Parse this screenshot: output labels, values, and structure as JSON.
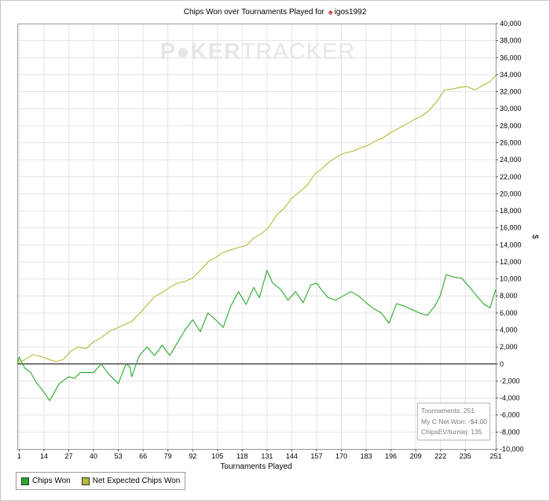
{
  "title": {
    "prefix": "Chips Won over Tournaments Played for",
    "player": "igos1992"
  },
  "watermark": {
    "part1": "P",
    "part2": "KER",
    "part3": "TRACKER"
  },
  "colors": {
    "chips_won": "#2aa82a",
    "net_expected": "#b8b83a",
    "zero_line": "#000000",
    "grid": "#e4e4e4",
    "watermark": "#e6e6e6"
  },
  "chart_data": {
    "type": "line",
    "xlabel": "Tournaments Played",
    "ylabel": "$",
    "xlim": [
      0,
      251
    ],
    "ylim": [
      -10000,
      40000
    ],
    "grid": true,
    "legend_position": "bottom-left",
    "x_ticks": [
      1,
      14,
      27,
      40,
      53,
      66,
      79,
      92,
      105,
      118,
      131,
      144,
      157,
      170,
      183,
      196,
      209,
      222,
      235,
      251
    ],
    "y_ticks": [
      -10000,
      -8000,
      -6000,
      -4000,
      -2000,
      0,
      2000,
      4000,
      6000,
      8000,
      10000,
      12000,
      14000,
      16000,
      18000,
      20000,
      22000,
      24000,
      26000,
      28000,
      30000,
      32000,
      34000,
      36000,
      38000,
      40000
    ],
    "y_tick_labels": [
      "-10,000",
      "-8,000",
      "-6,000",
      "-4,000",
      "-2,000",
      "0",
      "2,000",
      "4,000",
      "6,000",
      "8,000",
      "10,000",
      "12,000",
      "14,000",
      "16,000",
      "18,000",
      "20,000",
      "22,000",
      "24,000",
      "26,000",
      "28,000",
      "30,000",
      "32,000",
      "34,000",
      "36,000",
      "38,000",
      "40,000"
    ],
    "series": [
      {
        "name": "Chips Won",
        "x": [
          0,
          1,
          4,
          7,
          10,
          13,
          17,
          19,
          22,
          27,
          30,
          33,
          40,
          44,
          48,
          53,
          57,
          59,
          60,
          64,
          68,
          72,
          76,
          80,
          84,
          88,
          92,
          96,
          100,
          104,
          108,
          112,
          116,
          120,
          124,
          127,
          131,
          134,
          138,
          142,
          146,
          150,
          154,
          157,
          160,
          163,
          167,
          171,
          175,
          179,
          183,
          187,
          191,
          195,
          199,
          203,
          207,
          211,
          215,
          219,
          222,
          225,
          229,
          233,
          237,
          241,
          245,
          248,
          251
        ],
        "y": [
          0,
          800,
          -500,
          -1000,
          -2200,
          -3000,
          -4300,
          -3500,
          -2300,
          -1500,
          -1700,
          -1000,
          -1000,
          0,
          -1200,
          -2300,
          0,
          -300,
          -1500,
          1000,
          2000,
          1000,
          2200,
          1000,
          2500,
          4000,
          5200,
          3800,
          6000,
          5200,
          4300,
          6800,
          8500,
          7000,
          9000,
          7800,
          11000,
          9500,
          8800,
          7500,
          8500,
          7200,
          9300,
          9500,
          8600,
          7800,
          7500,
          8000,
          8500,
          8000,
          7200,
          6500,
          6000,
          4800,
          7100,
          6800,
          6400,
          6000,
          5700,
          6800,
          8100,
          10500,
          10200,
          10100,
          9100,
          8000,
          7000,
          6600,
          8800
        ]
      },
      {
        "name": "Net Expected Chips Won",
        "x": [
          0,
          4,
          8,
          12,
          16,
          20,
          24,
          28,
          32,
          36,
          40,
          44,
          48,
          52,
          56,
          60,
          64,
          68,
          72,
          76,
          80,
          84,
          88,
          92,
          96,
          100,
          104,
          108,
          112,
          116,
          120,
          124,
          128,
          132,
          136,
          140,
          144,
          148,
          152,
          156,
          160,
          164,
          168,
          172,
          176,
          180,
          184,
          188,
          192,
          196,
          200,
          204,
          208,
          212,
          216,
          220,
          224,
          228,
          232,
          236,
          240,
          244,
          248,
          251
        ],
        "y": [
          100,
          500,
          1100,
          900,
          600,
          300,
          500,
          1500,
          2000,
          1800,
          2600,
          3100,
          3800,
          4200,
          4600,
          5000,
          5900,
          6900,
          7900,
          8400,
          9000,
          9500,
          9700,
          10100,
          11000,
          12000,
          12500,
          13100,
          13400,
          13700,
          13900,
          14800,
          15300,
          16100,
          17500,
          18300,
          19500,
          20200,
          21000,
          22300,
          23000,
          23800,
          24400,
          24800,
          25000,
          25400,
          25700,
          26200,
          26600,
          27200,
          27700,
          28200,
          28700,
          29100,
          29800,
          30800,
          32200,
          32300,
          32500,
          32600,
          32200,
          32700,
          33200,
          33900
        ]
      }
    ]
  },
  "legend": {
    "chips_won": "Chips Won",
    "net_expected": "Net Expected Chips Won"
  },
  "stats": {
    "tournaments": "Tournaments: 251",
    "net_won": "My C Net Won: -$4.00",
    "chips_ev": "ChipsEV/turniej: 135"
  }
}
